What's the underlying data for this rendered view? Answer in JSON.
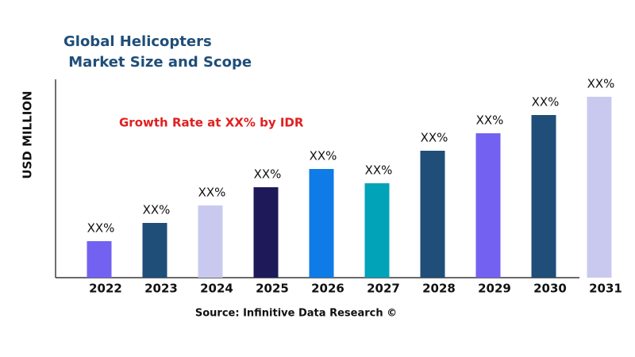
{
  "chart_data": {
    "type": "bar",
    "title": [
      "Global Helicopters",
      " Market Size and Scope"
    ],
    "annotation": "Growth Rate at XX% by IDR",
    "y_label": "USD MILLION",
    "source": "Source: Infinitive Data Research ©",
    "categories": [
      "2022",
      "2023",
      "2024",
      "2025",
      "2026",
      "2027",
      "2028",
      "2029",
      "2030",
      "2031"
    ],
    "values": [
      46,
      69,
      91,
      114,
      137,
      119,
      160,
      182,
      205,
      228
    ],
    "value_labels": [
      "XX%",
      "XX%",
      "XX%",
      "XX%",
      "XX%",
      "XX%",
      "XX%",
      "XX%",
      "XX%",
      "XX%"
    ],
    "colors": [
      "#7361f2",
      "#1f4e79",
      "#c9c9f0",
      "#1e1a5a",
      "#0f7be6",
      "#00a3b8",
      "#1f4e79",
      "#7361f2",
      "#1f4e79",
      "#c9c9f0"
    ],
    "ylim": [
      0,
      250
    ]
  }
}
